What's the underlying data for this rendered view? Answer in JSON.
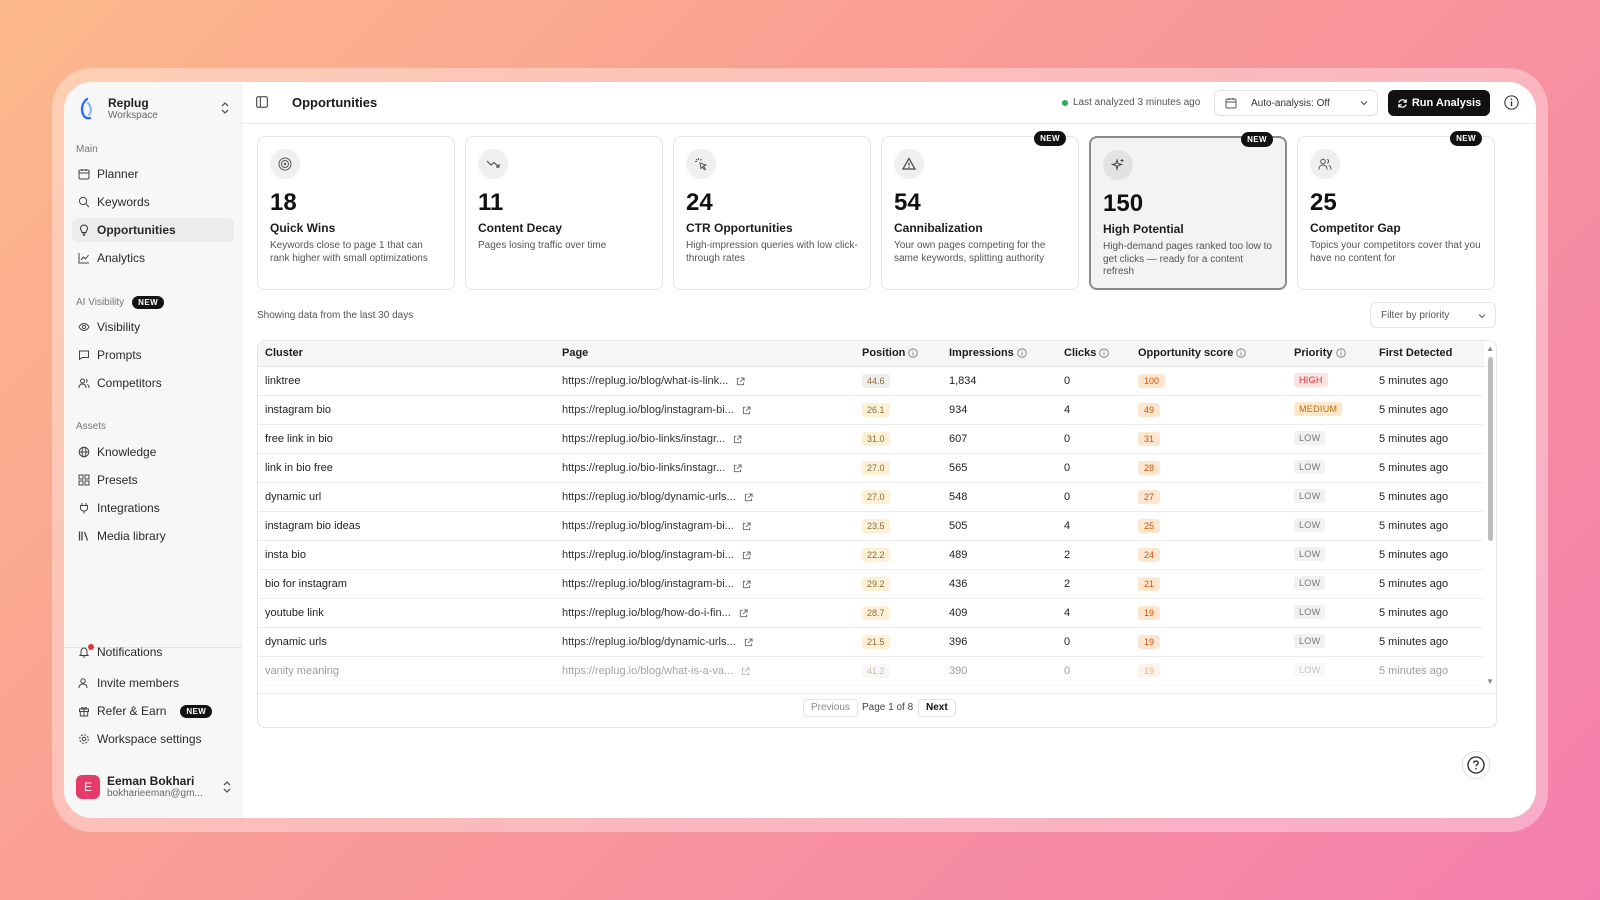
{
  "workspace": {
    "name": "Replug",
    "sub": "Workspace"
  },
  "sidebar": {
    "main_label": "Main",
    "main_items": [
      {
        "label": "Planner",
        "icon": "calendar-icon"
      },
      {
        "label": "Keywords",
        "icon": "search-icon"
      },
      {
        "label": "Opportunities",
        "icon": "lightbulb-icon",
        "active": true
      },
      {
        "label": "Analytics",
        "icon": "chart-icon"
      }
    ],
    "ai_label": "AI Visibility",
    "ai_badge": "NEW",
    "ai_items": [
      {
        "label": "Visibility",
        "icon": "eye-icon"
      },
      {
        "label": "Prompts",
        "icon": "message-icon"
      },
      {
        "label": "Competitors",
        "icon": "users-icon"
      }
    ],
    "assets_label": "Assets",
    "assets_items": [
      {
        "label": "Knowledge",
        "icon": "globe-icon"
      },
      {
        "label": "Presets",
        "icon": "grid-icon"
      },
      {
        "label": "Integrations",
        "icon": "plug-icon"
      },
      {
        "label": "Media library",
        "icon": "library-icon"
      }
    ],
    "bottom_items": [
      {
        "label": "Notifications",
        "icon": "bell-icon"
      },
      {
        "label": "Invite members",
        "icon": "user-plus-icon"
      },
      {
        "label": "Refer & Earn",
        "icon": "gift-icon",
        "badge": "NEW"
      },
      {
        "label": "Workspace settings",
        "icon": "gear-icon"
      }
    ],
    "user": {
      "initial": "E",
      "name": "Eeman Bokhari",
      "email": "bokharieeman@gm..."
    }
  },
  "header": {
    "title": "Opportunities",
    "last_analyzed": "Last analyzed 3 minutes ago",
    "auto_analysis": "Auto-analysis: Off",
    "run_button": "Run Analysis"
  },
  "cards": [
    {
      "value": "18",
      "title": "Quick Wins",
      "desc": "Keywords close to page 1 that can rank higher with small optimizations",
      "icon": "target-icon"
    },
    {
      "value": "11",
      "title": "Content Decay",
      "desc": "Pages losing traffic over time",
      "icon": "trend-down-icon"
    },
    {
      "value": "24",
      "title": "CTR Opportunities",
      "desc": "High-impression queries with low click-through rates",
      "icon": "cursor-click-icon"
    },
    {
      "value": "54",
      "title": "Cannibalization",
      "desc": "Your own pages competing for the same keywords, splitting authority",
      "icon": "warning-icon",
      "badge": "NEW"
    },
    {
      "value": "150",
      "title": "High Potential",
      "desc": "High-demand pages ranked too low to get clicks — ready for a content refresh",
      "icon": "sparkle-icon",
      "badge": "NEW",
      "selected": true
    },
    {
      "value": "25",
      "title": "Competitor Gap",
      "desc": "Topics your competitors cover that you have no content for",
      "icon": "users-icon",
      "badge": "NEW"
    }
  ],
  "showing": "Showing data from the last 30 days",
  "filter": "Filter by priority",
  "table": {
    "headers": [
      "Cluster",
      "Page",
      "Position",
      "Impressions",
      "Clicks",
      "Opportunity score",
      "Priority",
      "First Detected"
    ],
    "rows": [
      {
        "cluster": "linktree",
        "page": "https://replug.io/blog/what-is-link...",
        "position": "44.6",
        "impressions": "1,834",
        "clicks": "0",
        "score": "100",
        "priority": "HIGH",
        "detected": "5 minutes ago"
      },
      {
        "cluster": "instagram bio",
        "page": "https://replug.io/blog/instagram-bi...",
        "position": "26.1",
        "impressions": "934",
        "clicks": "4",
        "score": "49",
        "priority": "MEDIUM",
        "detected": "5 minutes ago"
      },
      {
        "cluster": "free link in bio",
        "page": "https://replug.io/bio-links/instagr...",
        "position": "31.0",
        "impressions": "607",
        "clicks": "0",
        "score": "31",
        "priority": "LOW",
        "detected": "5 minutes ago"
      },
      {
        "cluster": "link in bio free",
        "page": "https://replug.io/bio-links/instagr...",
        "position": "27.0",
        "impressions": "565",
        "clicks": "0",
        "score": "28",
        "priority": "LOW",
        "detected": "5 minutes ago"
      },
      {
        "cluster": "dynamic url",
        "page": "https://replug.io/blog/dynamic-urls...",
        "position": "27.0",
        "impressions": "548",
        "clicks": "0",
        "score": "27",
        "priority": "LOW",
        "detected": "5 minutes ago"
      },
      {
        "cluster": "instagram bio ideas",
        "page": "https://replug.io/blog/instagram-bi...",
        "position": "23.5",
        "impressions": "505",
        "clicks": "4",
        "score": "25",
        "priority": "LOW",
        "detected": "5 minutes ago"
      },
      {
        "cluster": "insta bio",
        "page": "https://replug.io/blog/instagram-bi...",
        "position": "22.2",
        "impressions": "489",
        "clicks": "2",
        "score": "24",
        "priority": "LOW",
        "detected": "5 minutes ago"
      },
      {
        "cluster": "bio for instagram",
        "page": "https://replug.io/blog/instagram-bi...",
        "position": "29.2",
        "impressions": "436",
        "clicks": "2",
        "score": "21",
        "priority": "LOW",
        "detected": "5 minutes ago"
      },
      {
        "cluster": "youtube link",
        "page": "https://replug.io/blog/how-do-i-fin...",
        "position": "28.7",
        "impressions": "409",
        "clicks": "4",
        "score": "19",
        "priority": "LOW",
        "detected": "5 minutes ago"
      },
      {
        "cluster": "dynamic urls",
        "page": "https://replug.io/blog/dynamic-urls...",
        "position": "21.5",
        "impressions": "396",
        "clicks": "0",
        "score": "19",
        "priority": "LOW",
        "detected": "5 minutes ago"
      },
      {
        "cluster": "vanity meaning",
        "page": "https://replug.io/blog/what-is-a-va...",
        "position": "41.2",
        "impressions": "390",
        "clicks": "0",
        "score": "19",
        "priority": "LOW",
        "detected": "5 minutes ago"
      }
    ]
  },
  "pagination": {
    "previous": "Previous",
    "page_text": "Page 1 of 8",
    "next": "Next"
  },
  "colors": {
    "high": "#fde2e2",
    "high_text": "#d32f2f",
    "medium": "#fde8cc",
    "medium_text": "#c26a00",
    "low": "#f1f1f1",
    "low_text": "#777777",
    "pos_bg": "#fdf0d5",
    "pos_bg_gray": "#eeeeee",
    "score_bg": "#fde6cf",
    "score_text": "#d35400"
  }
}
